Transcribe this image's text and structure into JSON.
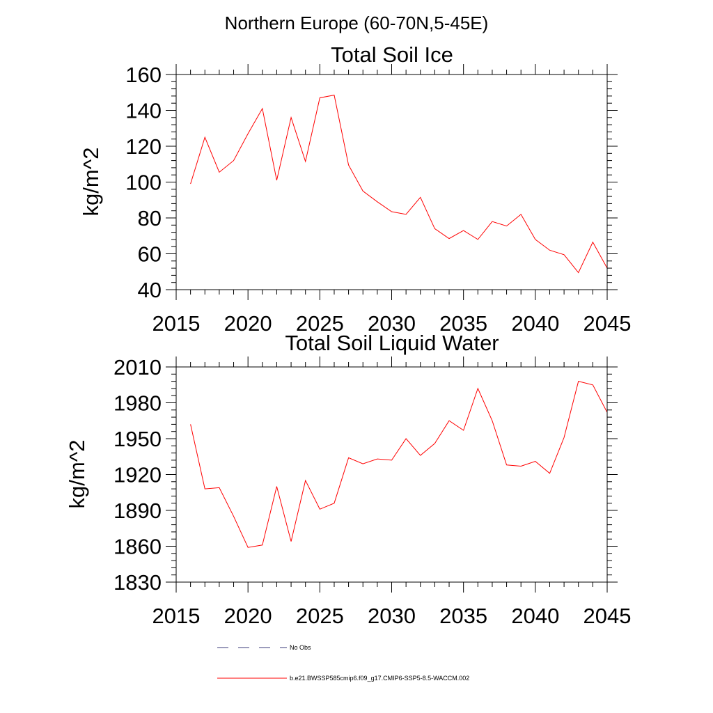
{
  "page": {
    "title": "Northern Europe (60-70N,5-45E)"
  },
  "legend": {
    "entries": [
      {
        "label": "No Obs",
        "style": "dashed",
        "color": "#3a3a7a"
      },
      {
        "label": "b.e21.BWSSP585cmip6.f09_g17.CMIP6-SSP5-8.5-WACCM.002",
        "style": "solid",
        "color": "#ff0000"
      }
    ]
  },
  "chart_data": [
    {
      "type": "line",
      "title": "Total Soil Ice",
      "xlabel": "",
      "ylabel": "kg/m^2",
      "xlim": [
        2015,
        2045
      ],
      "ylim": [
        40,
        160
      ],
      "xticks": [
        2015,
        2020,
        2025,
        2030,
        2035,
        2040,
        2045
      ],
      "xtick_labels": [
        "2015",
        "2020",
        "2025",
        "2030",
        "2035",
        "2040",
        "2045"
      ],
      "yticks": [
        40,
        60,
        80,
        100,
        120,
        140,
        160
      ],
      "ytick_labels": [
        "40",
        "60",
        "80",
        "100",
        "120",
        "140",
        "160"
      ],
      "series": [
        {
          "name": "b.e21.BWSSP585cmip6.f09_g17.CMIP6-SSP5-8.5-WACCM.002",
          "color": "#ff0000",
          "x": [
            2016,
            2017,
            2018,
            2019,
            2020,
            2021,
            2022,
            2023,
            2024,
            2025,
            2026,
            2027,
            2028,
            2029,
            2030,
            2031,
            2032,
            2033,
            2034,
            2035,
            2036,
            2037,
            2038,
            2039,
            2040,
            2041,
            2042,
            2043,
            2044,
            2045
          ],
          "values": [
            99,
            125,
            105.5,
            112,
            127,
            141,
            101,
            136,
            111.5,
            147,
            148.5,
            109.5,
            95,
            89,
            83.5,
            82,
            91.5,
            74,
            68.5,
            73,
            68,
            78,
            75.5,
            82,
            68,
            62,
            59.5,
            49.5,
            66.5,
            52
          ]
        }
      ]
    },
    {
      "type": "line",
      "title": "Total Soil Liquid Water",
      "xlabel": "",
      "ylabel": "kg/m^2",
      "xlim": [
        2015,
        2045
      ],
      "ylim": [
        1830,
        2010
      ],
      "xticks": [
        2015,
        2020,
        2025,
        2030,
        2035,
        2040,
        2045
      ],
      "xtick_labels": [
        "2015",
        "2020",
        "2025",
        "2030",
        "2035",
        "2040",
        "2045"
      ],
      "yticks": [
        1830,
        1860,
        1890,
        1920,
        1950,
        1980,
        2010
      ],
      "ytick_labels": [
        "1830",
        "1860",
        "1890",
        "1920",
        "1950",
        "1980",
        "2010"
      ],
      "series": [
        {
          "name": "b.e21.BWSSP585cmip6.f09_g17.CMIP6-SSP5-8.5-WACCM.002",
          "color": "#ff0000",
          "x": [
            2016,
            2017,
            2018,
            2019,
            2020,
            2021,
            2022,
            2023,
            2024,
            2025,
            2026,
            2027,
            2028,
            2029,
            2030,
            2031,
            2032,
            2033,
            2034,
            2035,
            2036,
            2037,
            2038,
            2039,
            2040,
            2041,
            2042,
            2043,
            2044,
            2045
          ],
          "values": [
            1962,
            1908,
            1909,
            1885,
            1859,
            1861,
            1910,
            1864,
            1915,
            1891,
            1896,
            1934,
            1929,
            1933,
            1932,
            1950,
            1936,
            1946,
            1965,
            1957,
            1992,
            1965,
            1928,
            1927,
            1931,
            1921,
            1951,
            1998,
            1995,
            1972
          ]
        }
      ]
    }
  ]
}
